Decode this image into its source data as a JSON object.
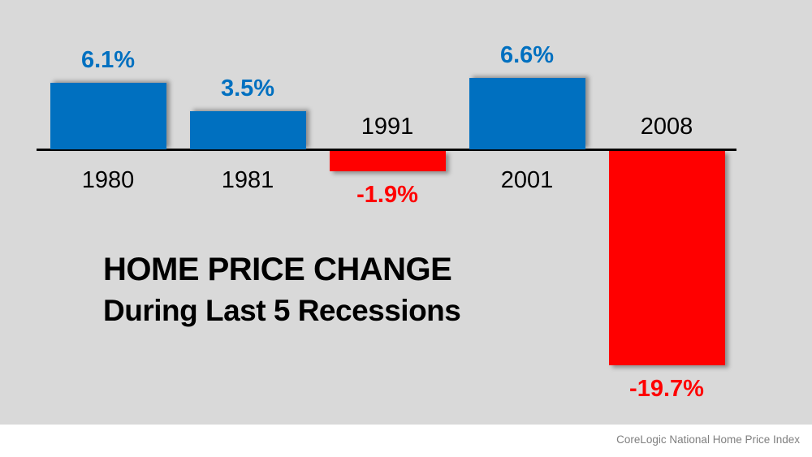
{
  "title": {
    "line1": "HOME PRICE CHANGE",
    "line2": "During Last 5 Recessions"
  },
  "footer": {
    "source": "CoreLogic National Home Price Index"
  },
  "colors": {
    "positive_bar": "#0070C0",
    "negative_bar": "#FF0000",
    "positive_label": "#0070C0",
    "negative_label": "#FF0000",
    "year_label": "#000000",
    "axis": "#000000",
    "background": "#D9D9D9",
    "footer_text": "#7F7F7F"
  },
  "chart_data": {
    "type": "bar",
    "title": "HOME PRICE CHANGE During Last 5 Recessions",
    "source": "CoreLogic National Home Price Index",
    "categories": [
      "1980",
      "1981",
      "1991",
      "2001",
      "2008"
    ],
    "values": [
      6.1,
      3.5,
      -1.9,
      6.6,
      -19.7
    ],
    "value_labels": [
      "6.1%",
      "3.5%",
      "-1.9%",
      "6.6%",
      "-19.7%"
    ],
    "bar_colors": [
      "#0070C0",
      "#0070C0",
      "#FF0000",
      "#0070C0",
      "#FF0000"
    ],
    "xlabel": "",
    "ylabel": "",
    "ylim": [
      -22,
      8
    ],
    "grid": false,
    "legend": null,
    "baseline": 0,
    "value_label_position": "outside-end",
    "category_label_position": "opposite-side-of-axis"
  }
}
